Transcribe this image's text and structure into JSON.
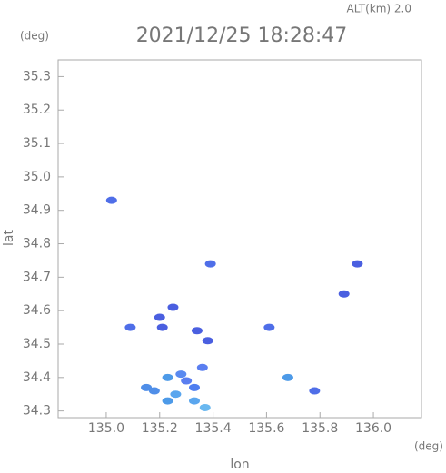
{
  "chart_data": {
    "type": "scatter",
    "title": "2021/12/25 18:28:47",
    "subtitle": "ALT(km) 2.0",
    "y_unit": "(deg)",
    "x_unit": "(deg)",
    "xlabel": "lon",
    "ylabel": "lat",
    "xlim": [
      134.82,
      136.18
    ],
    "ylim": [
      34.28,
      35.35
    ],
    "xticks": [
      {
        "value": 135,
        "label": "135.0"
      },
      135.2,
      135.4,
      135.6,
      135.8,
      {
        "value": 136,
        "label": "136.0"
      }
    ],
    "yticks": [
      34.3,
      34.4,
      34.5,
      34.6,
      34.7,
      34.8,
      34.9,
      {
        "value": 35,
        "label": "35.0"
      },
      35.1,
      35.2,
      35.3
    ],
    "x": [
      135.02,
      135.39,
      135.94,
      135.89,
      135.25,
      135.09,
      135.2,
      135.21,
      135.34,
      135.38,
      135.61,
      135.68,
      135.78,
      135.36,
      135.23,
      135.28,
      135.33,
      135.18,
      135.26,
      135.33,
      135.37,
      135.23,
      135.3,
      135.15
    ],
    "values": [
      34.93,
      34.74,
      34.74,
      34.65,
      34.61,
      34.55,
      34.58,
      34.55,
      34.54,
      34.51,
      34.55,
      34.4,
      34.36,
      34.43,
      34.4,
      34.41,
      34.37,
      34.36,
      34.35,
      34.33,
      34.31,
      34.33,
      34.39,
      34.37
    ],
    "colors": [
      "#4f6ee8",
      "#4f6ee8",
      "#4a5fe0",
      "#4a5fe0",
      "#4a5fe0",
      "#4f6ee8",
      "#4a5fe0",
      "#4a5fe0",
      "#4a5fe0",
      "#4a5fe0",
      "#4f6ee8",
      "#4d9ae8",
      "#4f6ee8",
      "#5a7ef0",
      "#4d9ae8",
      "#5a8af0",
      "#4f7ef0",
      "#4f8ee8",
      "#5aa6ee",
      "#5aa6ee",
      "#6ab8f0",
      "#4d9ae8",
      "#5a7ef0",
      "#4f8ee8"
    ]
  }
}
